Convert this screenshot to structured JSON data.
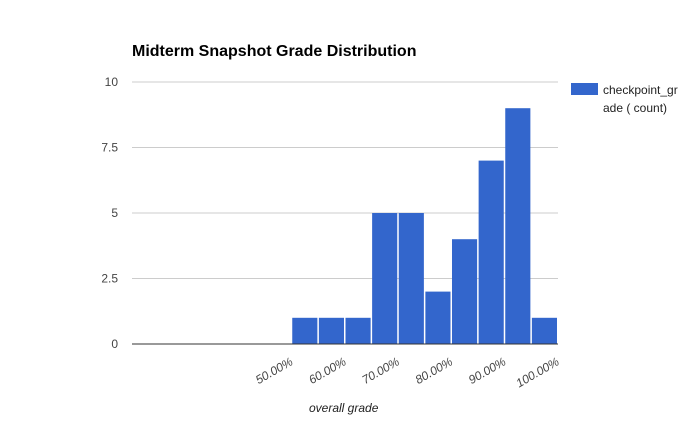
{
  "chart_data": {
    "type": "bar",
    "title": "Midterm Snapshot Grade Distribution",
    "xlabel": "overall grade",
    "ylabel": "",
    "ylim": [
      0,
      10
    ],
    "yticks": [
      "0",
      "2.5",
      "5",
      "7.5",
      "10"
    ],
    "xticks": [
      "50.00%",
      "60.00%",
      "70.00%",
      "80.00%",
      "90.00%",
      "100.00%"
    ],
    "x_range": [
      20,
      100
    ],
    "bin_width": 5,
    "series": [
      {
        "name": "checkpoint_grade ( count)",
        "color": "#3366cc",
        "bins": [
          {
            "start": 50,
            "end": 55,
            "count": 1
          },
          {
            "start": 55,
            "end": 60,
            "count": 1
          },
          {
            "start": 60,
            "end": 65,
            "count": 1
          },
          {
            "start": 65,
            "end": 70,
            "count": 5
          },
          {
            "start": 70,
            "end": 75,
            "count": 5
          },
          {
            "start": 75,
            "end": 80,
            "count": 2
          },
          {
            "start": 80,
            "end": 85,
            "count": 4
          },
          {
            "start": 85,
            "end": 90,
            "count": 7
          },
          {
            "start": 90,
            "end": 95,
            "count": 9
          },
          {
            "start": 95,
            "end": 100,
            "count": 1
          }
        ]
      }
    ],
    "grid": true,
    "legend_position": "right"
  }
}
